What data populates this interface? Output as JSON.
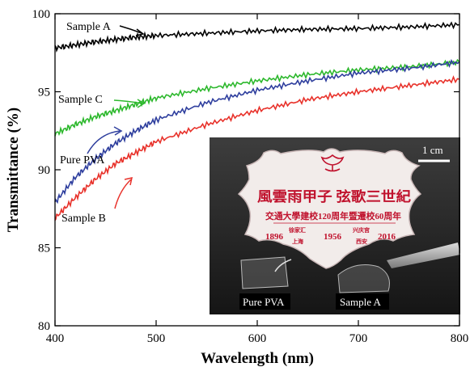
{
  "chart_data": {
    "type": "line",
    "xlabel": "Wavelength (nm)",
    "ylabel": "Transmittance (%)",
    "xlim": [
      400,
      800
    ],
    "ylim": [
      80,
      100
    ],
    "xticks": [
      400,
      500,
      600,
      700,
      800
    ],
    "yticks": [
      80,
      85,
      90,
      95,
      100
    ],
    "grid": false,
    "series": [
      {
        "name": "Sample A",
        "color": "#000000",
        "x": [
          400,
          420,
          440,
          460,
          480,
          500,
          550,
          600,
          650,
          700,
          750,
          800
        ],
        "y": [
          97.8,
          98.0,
          98.2,
          98.35,
          98.5,
          98.6,
          98.75,
          98.9,
          99.0,
          99.05,
          99.15,
          99.3
        ]
      },
      {
        "name": "Sample C",
        "color": "#2db82d",
        "x": [
          400,
          420,
          440,
          460,
          480,
          500,
          550,
          600,
          650,
          700,
          750,
          800
        ],
        "y": [
          92.3,
          92.9,
          93.4,
          93.8,
          94.2,
          94.6,
          95.2,
          95.7,
          96.1,
          96.4,
          96.6,
          96.9
        ]
      },
      {
        "name": "Pure  PVA",
        "color": "#2f3f9e",
        "x": [
          400,
          420,
          440,
          460,
          480,
          500,
          550,
          600,
          650,
          700,
          750,
          800
        ],
        "y": [
          87.9,
          89.5,
          90.7,
          91.7,
          92.5,
          93.2,
          94.3,
          95.1,
          95.7,
          96.2,
          96.5,
          96.9
        ]
      },
      {
        "name": "Sample B",
        "color": "#e8322b",
        "x": [
          400,
          420,
          440,
          460,
          480,
          500,
          550,
          600,
          650,
          700,
          750,
          800
        ],
        "y": [
          86.9,
          88.2,
          89.4,
          90.4,
          91.1,
          91.8,
          92.9,
          93.8,
          94.5,
          95.0,
          95.4,
          95.8
        ]
      }
    ],
    "inset": {
      "scale_bar": "1 cm",
      "labels": [
        "Pure PVA",
        "Sample A"
      ],
      "badge_line1": "風雲雨甲子 弦歌三世紀",
      "badge_line2": "交通大學建校120周年暨遷校60周年",
      "badge_years": [
        "1896",
        "1956",
        "2016"
      ],
      "badge_places": [
        "徐家汇",
        "上海",
        "兴庆宫",
        "西安"
      ]
    }
  }
}
